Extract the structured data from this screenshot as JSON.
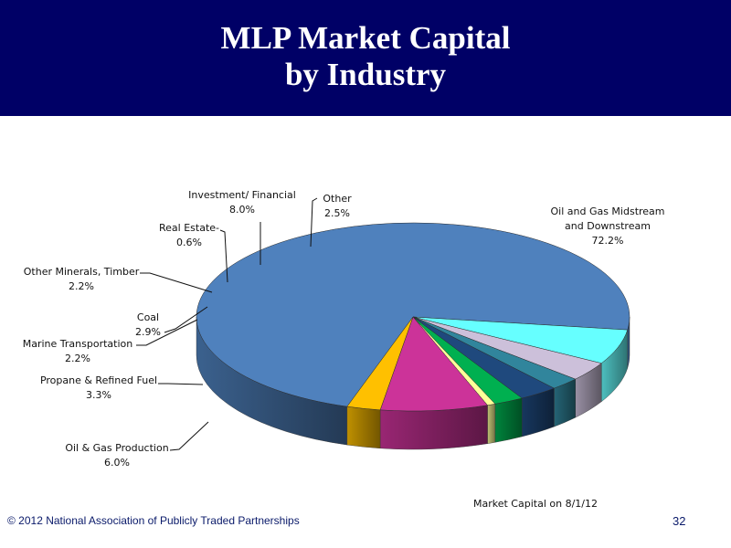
{
  "slide": {
    "title_line1": "MLP Market Capital",
    "title_line2": "by Industry",
    "footer_copyright": "© 2012 National Association of Publicly Traded Partnerships",
    "page_number": "32",
    "header_color": "#000066"
  },
  "chart_data": {
    "type": "pie",
    "style": "3d-pie",
    "annotation": "Market Capital on  8/1/12",
    "slices": [
      {
        "name": "Oil and Gas Midstream and Downstream",
        "label_lines": [
          "Oil and Gas Midstream",
          "and Downstream"
        ],
        "percent_label": "72.2%",
        "value": 72.2,
        "color": "#4f81bd"
      },
      {
        "name": "Oil & Gas Production",
        "label_lines": [
          "Oil & Gas Production"
        ],
        "percent_label": "6.0%",
        "value": 6.0,
        "color": "#66ffff"
      },
      {
        "name": "Propane & Refined Fuel",
        "label_lines": [
          "Propane & Refined Fuel"
        ],
        "percent_label": "3.3%",
        "value": 3.3,
        "color": "#ccc0da"
      },
      {
        "name": "Marine Transportation",
        "label_lines": [
          "Marine Transportation"
        ],
        "percent_label": "2.2%",
        "value": 2.2,
        "color": "#31859c"
      },
      {
        "name": "Coal",
        "label_lines": [
          "Coal"
        ],
        "percent_label": "2.9%",
        "value": 2.9,
        "color": "#1f497d"
      },
      {
        "name": "Other Minerals, Timber",
        "label_lines": [
          "Other Minerals, Timber"
        ],
        "percent_label": "2.2%",
        "value": 2.2,
        "color": "#00b050"
      },
      {
        "name": "Real Estate",
        "label_lines": [
          "Real Estate-"
        ],
        "percent_label": "0.6%",
        "value": 0.6,
        "color": "#ffff99"
      },
      {
        "name": "Investment/ Financial",
        "label_lines": [
          "Investment/ Financial"
        ],
        "percent_label": "8.0%",
        "value": 8.0,
        "color": "#cc3399"
      },
      {
        "name": "Other",
        "label_lines": [
          "Other"
        ],
        "percent_label": "2.5%",
        "value": 2.5,
        "color": "#ffc000"
      }
    ]
  }
}
